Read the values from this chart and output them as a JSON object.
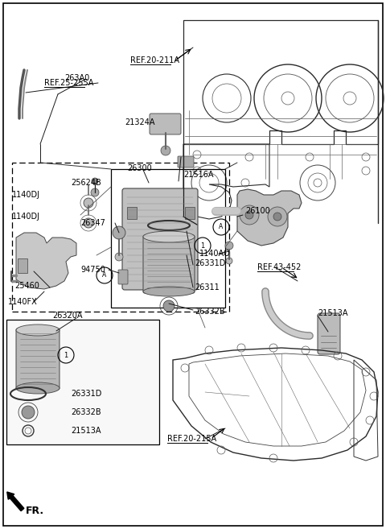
{
  "bg_color": "#ffffff",
  "fig_width": 4.8,
  "fig_height": 6.57,
  "dpi": 100,
  "lc": "#1a1a1a",
  "gray_dark": "#555555",
  "gray_mid": "#888888",
  "gray_light": "#bbbbbb",
  "gray_fill": "#d0d0d0",
  "part_labels": [
    [
      "263A0",
      0.62,
      4.62
    ],
    [
      "25624B",
      0.68,
      4.38
    ],
    [
      "1140DJ",
      0.08,
      4.25
    ],
    [
      "1140DJ",
      0.08,
      3.98
    ],
    [
      "26300",
      1.22,
      4.38
    ],
    [
      "21516A",
      1.6,
      4.2
    ],
    [
      "21324A",
      1.42,
      5.08
    ],
    [
      "26347",
      1.05,
      3.68
    ],
    [
      "94750",
      0.95,
      3.18
    ],
    [
      "25460",
      0.1,
      2.92
    ],
    [
      "26320A",
      0.22,
      2.55
    ],
    [
      "1140FX",
      0.05,
      2.75
    ],
    [
      "26100",
      3.1,
      3.78
    ],
    [
      "1140AO",
      2.72,
      3.35
    ],
    [
      "21513A",
      3.62,
      2.55
    ],
    [
      "26331D",
      1.98,
      3.2
    ],
    [
      "26311",
      1.98,
      2.92
    ],
    [
      "26332B",
      1.98,
      2.62
    ]
  ],
  "ref_labels": [
    [
      "REF.20-211A",
      1.6,
      5.72
    ],
    [
      "REF.25-255A",
      0.32,
      5.42
    ],
    [
      "REF.43-452",
      3.18,
      3.2
    ],
    [
      "REF.20-215A",
      2.05,
      1.05
    ]
  ],
  "inset_labels": [
    [
      "26331D",
      0.52,
      1.7
    ],
    [
      "26332B",
      0.52,
      1.48
    ],
    [
      "21513A",
      0.52,
      1.28
    ]
  ]
}
